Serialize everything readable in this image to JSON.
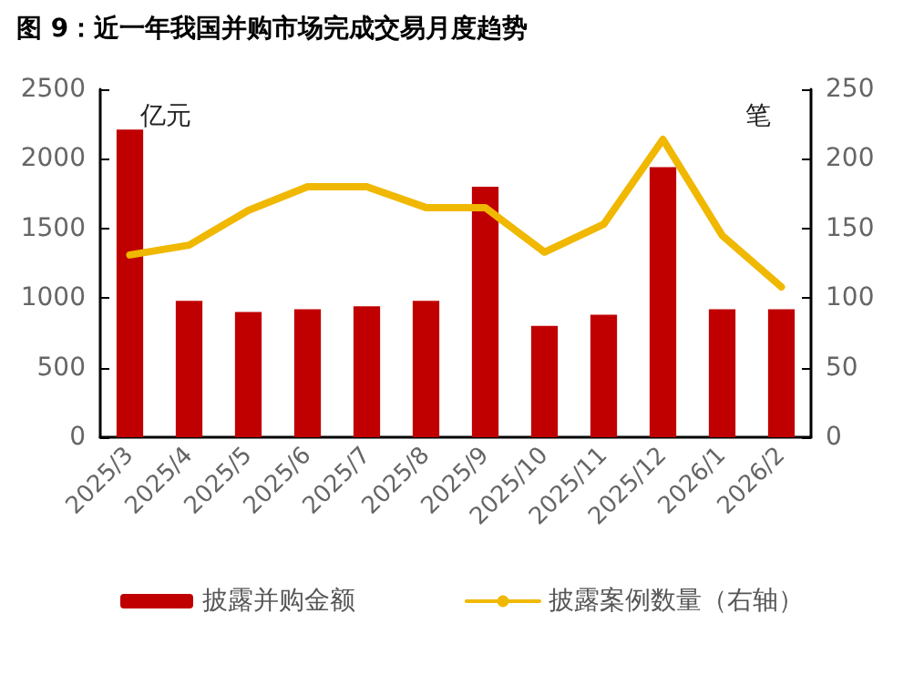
{
  "chart_data": {
    "type": "bar",
    "title": "图 9：近一年我国并购市场完成交易月度趋势",
    "ylabel": "亿元",
    "y2label": "笔",
    "categories": [
      "2025/3",
      "2025/4",
      "2025/5",
      "2025/6",
      "2025/7",
      "2025/8",
      "2025/9",
      "2025/10",
      "2025/11",
      "2025/12",
      "2026/1",
      "2026/2"
    ],
    "series": [
      {
        "name": "披露并购金额",
        "color": "#c00000",
        "values": [
          2210,
          980,
          900,
          920,
          940,
          980,
          1800,
          800,
          880,
          1940,
          920,
          920
        ]
      },
      {
        "name": "披露案例数量（右轴）",
        "type": "line",
        "axis": "y2",
        "color": "#f0b800",
        "values": [
          131,
          138,
          163,
          180,
          180,
          165,
          165,
          133,
          153,
          214,
          145,
          108
        ]
      }
    ],
    "ylim": [
      0,
      2500
    ],
    "yticks": [
      0,
      500,
      1000,
      1500,
      2000,
      2500
    ],
    "y2lim": [
      0,
      250
    ],
    "y2ticks": [
      0,
      50,
      100,
      150,
      200,
      250
    ],
    "grid": false,
    "legend": "bottom",
    "marker": "none",
    "line_style": "solid"
  }
}
